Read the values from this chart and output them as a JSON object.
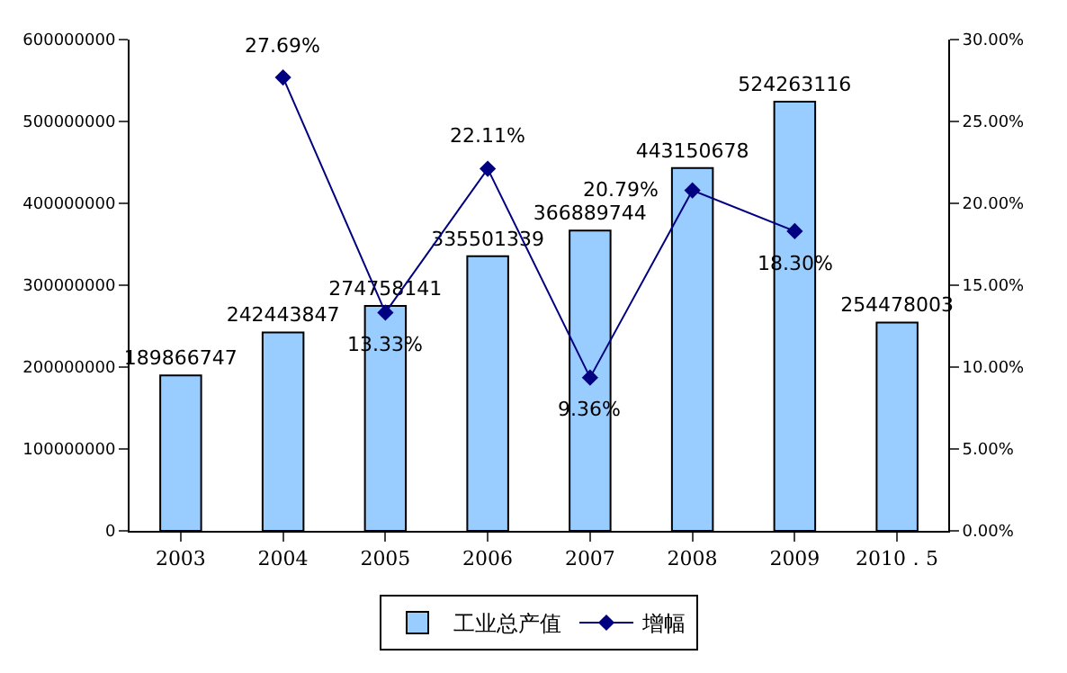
{
  "chart_data": {
    "type": "bar",
    "categories": [
      "2003",
      "2004",
      "2005",
      "2006",
      "2007",
      "2008",
      "2009",
      "2010．5"
    ],
    "series": [
      {
        "name": "工业总产值",
        "color": "#99ccff",
        "values": [
          189866747,
          242443847,
          274758141,
          335501339,
          366889744,
          443150678,
          524263116,
          254478003
        ],
        "value_labels": [
          "189866747",
          "242443847",
          "274758141",
          "335501339",
          "366889744",
          "443150678",
          "524263116",
          "254478003"
        ]
      },
      {
        "name": "增幅",
        "type": "line",
        "axis": "y2",
        "color": "#000080",
        "marker": "diamond",
        "values": [
          null,
          27.69,
          13.33,
          22.11,
          9.36,
          20.79,
          18.3,
          null
        ],
        "value_labels": [
          null,
          "27.69%",
          "13.33%",
          "22.11%",
          "9.36%",
          "20.79%",
          "18.30%",
          null
        ]
      }
    ],
    "ylim": [
      0,
      600000000
    ],
    "yticks": [
      0,
      100000000,
      200000000,
      300000000,
      400000000,
      500000000,
      600000000
    ],
    "y2lim": [
      0,
      30
    ],
    "y2ticks": [
      {
        "value": 0,
        "label": "0.00%"
      },
      {
        "value": 5,
        "label": "5.00%"
      },
      {
        "value": 10,
        "label": "10.00%"
      },
      {
        "value": 15,
        "label": "15.00%"
      },
      {
        "value": 20,
        "label": "20.00%"
      },
      {
        "value": 25,
        "label": "25.00%"
      },
      {
        "value": 30,
        "label": "30.00%"
      }
    ],
    "legend": "bottom"
  }
}
